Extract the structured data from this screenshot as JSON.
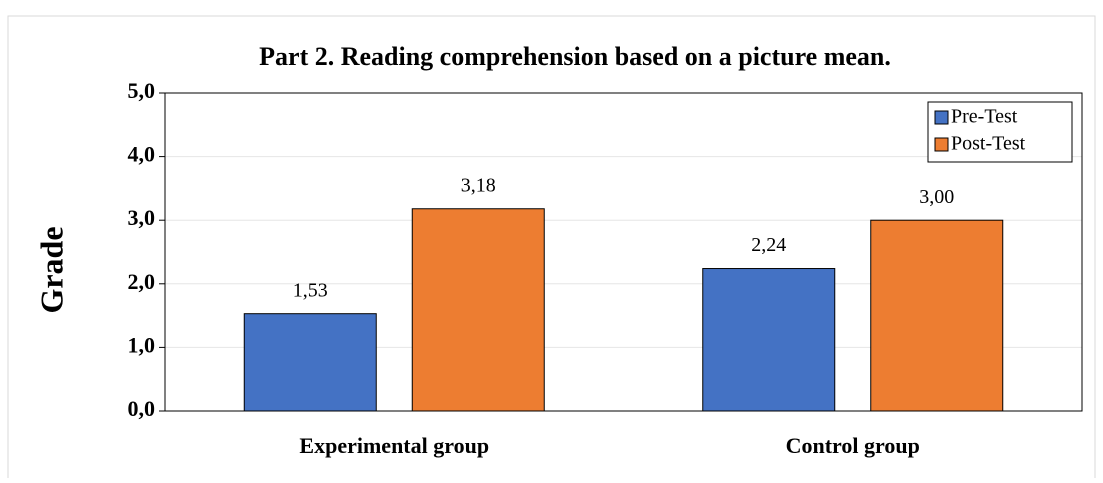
{
  "chart_data": {
    "type": "bar",
    "title": "Part 2. Reading comprehension based on a picture mean.",
    "ylabel": "Grade",
    "categories": [
      "Experimental group",
      "Control group"
    ],
    "series": [
      {
        "name": "Pre-Test",
        "color": "#4472c4",
        "values": [
          1.53,
          2.24
        ],
        "value_labels": [
          "1,53",
          "2,24"
        ]
      },
      {
        "name": "Post-Test",
        "color": "#ed7d31",
        "values": [
          3.18,
          3.0
        ],
        "value_labels": [
          "3,18",
          "3,00"
        ]
      }
    ],
    "ylim": [
      0,
      5
    ],
    "yticks": [
      {
        "value": 0,
        "label": "0,0"
      },
      {
        "value": 1,
        "label": "1,0"
      },
      {
        "value": 2,
        "label": "2,0"
      },
      {
        "value": 3,
        "label": "3,0"
      },
      {
        "value": 4,
        "label": "4,0"
      },
      {
        "value": 5,
        "label": "5,0"
      }
    ],
    "grid": true,
    "legend": "upper right"
  }
}
